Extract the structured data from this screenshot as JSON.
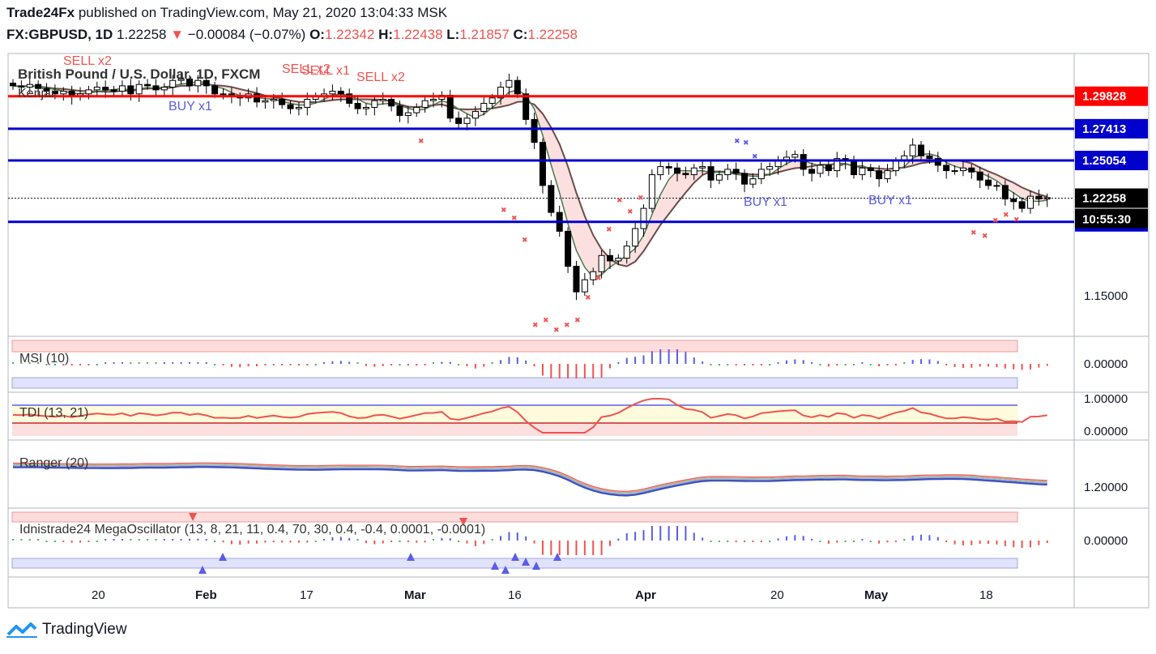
{
  "header": {
    "publisher": "Trade24Fx",
    "published_text": "published on TradingView.com, May 21, 2020 13:04:33 MSK",
    "symbol": "FX:GBPUSD, 1D",
    "last": "1.22258",
    "change": "−0.00084 (−0.07%)",
    "o_label": "O:",
    "o": "1.22342",
    "h_label": "H:",
    "h": "1.22438",
    "l_label": "L:",
    "l": "1.21857",
    "c_label": "C:",
    "c": "1.22258"
  },
  "brand": {
    "name": "TradingView"
  },
  "colors": {
    "up": "#ffffff",
    "down": "#000000",
    "bear": "#ef5350",
    "bull": "#5b5ce8",
    "resistance": "#ff0000",
    "support": "#0000cc"
  },
  "chart_data": {
    "type": "candlestick",
    "title": "British Pound / U.S. Dollar, 1D, FXCM",
    "overlay_label": "Kenjar",
    "x_axis_labels": [
      "20",
      "Feb",
      "17",
      "Mar",
      "16",
      "Apr",
      "20",
      "May",
      "18"
    ],
    "price_axis": {
      "range": [
        1.12,
        1.33
      ],
      "tick_labels": [
        "1.15000"
      ]
    },
    "current_price": "1.22258",
    "countdown": "10:55:30",
    "horizontal_levels": [
      {
        "value": 1.29828,
        "label": "1.29828",
        "color": "#ff0000"
      },
      {
        "value": 1.27413,
        "label": "1.27413",
        "color": "#0000cc"
      },
      {
        "value": 1.25054,
        "label": "1.25054",
        "color": "#0000cc"
      },
      {
        "value": 1.20499,
        "label": "1.20499",
        "color": "#0000cc"
      }
    ],
    "signal_labels": [
      "SELL x2",
      "SELL x2",
      "SELL x1",
      "SELL x2",
      "BUY x1",
      "BUY x1",
      "BUY x1"
    ],
    "closes": [
      1.306,
      1.305,
      1.307,
      1.304,
      1.302,
      1.3,
      1.302,
      1.298,
      1.3,
      1.303,
      1.305,
      1.303,
      1.302,
      1.306,
      1.3,
      1.307,
      1.306,
      1.303,
      1.305,
      1.31,
      1.311,
      1.306,
      1.31,
      1.306,
      1.3,
      1.3,
      1.298,
      1.297,
      1.3,
      1.294,
      1.295,
      1.296,
      1.292,
      1.289,
      1.29,
      1.296,
      1.298,
      1.3,
      1.302,
      1.3,
      1.293,
      1.289,
      1.29,
      1.295,
      1.296,
      1.291,
      1.284,
      1.286,
      1.29,
      1.295,
      1.296,
      1.299,
      1.282,
      1.278,
      1.282,
      1.287,
      1.293,
      1.297,
      1.305,
      1.31,
      1.3,
      1.281,
      1.264,
      1.232,
      1.212,
      1.198,
      1.172,
      1.153,
      1.162,
      1.168,
      1.18,
      1.176,
      1.178,
      1.187,
      1.2,
      1.215,
      1.24,
      1.246,
      1.245,
      1.241,
      1.24,
      1.245,
      1.246,
      1.236,
      1.24,
      1.244,
      1.241,
      1.233,
      1.237,
      1.244,
      1.246,
      1.25,
      1.253,
      1.255,
      1.244,
      1.241,
      1.247,
      1.243,
      1.252,
      1.25,
      1.24,
      1.245,
      1.243,
      1.237,
      1.243,
      1.25,
      1.254,
      1.262,
      1.254,
      1.252,
      1.247,
      1.243,
      1.243,
      1.245,
      1.242,
      1.236,
      1.232,
      1.232,
      1.222,
      1.22,
      1.215,
      1.224,
      1.222,
      1.223
    ],
    "panes": [
      {
        "name": "MSI (10)",
        "tick_labels": [
          "0.00000"
        ]
      },
      {
        "name": "TDI (13, 21)",
        "tick_labels": [
          "1.00000",
          "0.00000"
        ]
      },
      {
        "name": "Ranger (20)",
        "tick_labels": [
          "1.20000"
        ]
      },
      {
        "name": "Idnistrade24 MegaOscillator (13, 8, 21, 11, 0.4, 70, 30, 0.4, -0.4, 0.0001, -0.0001)",
        "tick_labels": [
          "0.00000"
        ]
      }
    ]
  }
}
